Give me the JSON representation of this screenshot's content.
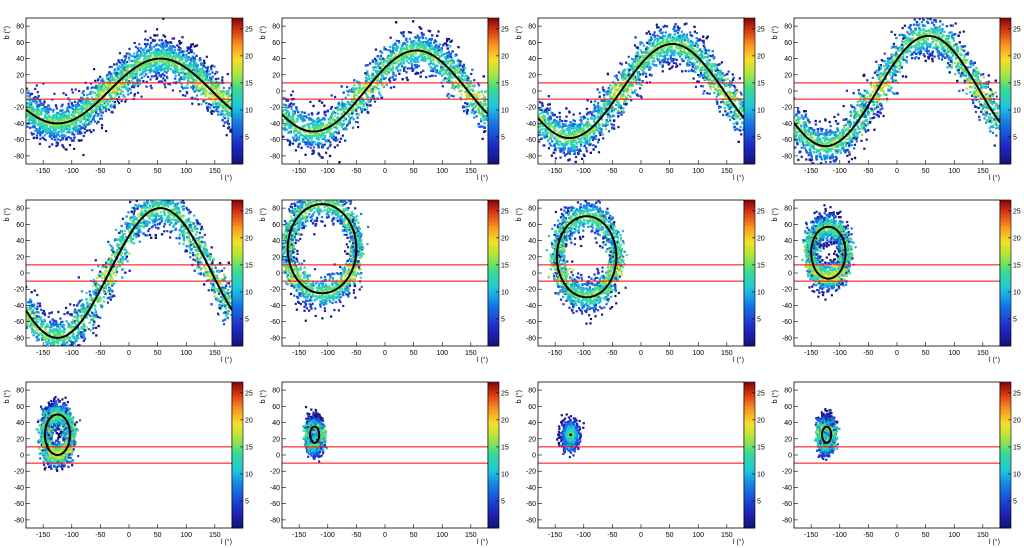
{
  "figure": {
    "common": {
      "xlabel": "l (°)",
      "ylabel": "b (°)",
      "xlim": [
        -180,
        180
      ],
      "ylim": [
        -90,
        90
      ],
      "xticks": [
        -150,
        -100,
        -50,
        0,
        50,
        100,
        150
      ],
      "yticks": [
        -80,
        -60,
        -40,
        -20,
        0,
        20,
        40,
        60,
        80
      ],
      "cbar_ticks": [
        5,
        10,
        15,
        20,
        25
      ],
      "cbar_max": 27,
      "red_lines_b": [
        10,
        -10
      ],
      "colors": {
        "curve": "#000000",
        "red_line": "#ff0000",
        "frame": "#000000"
      }
    }
  },
  "chart_data": [
    {
      "type": "heatmap",
      "kind": "sinusoid",
      "amp": 40,
      "phase": 55,
      "width": 13,
      "peak": 1.0,
      "title": "",
      "xlabel": "l (°)",
      "ylabel": "b (°)",
      "xlim": [
        -180,
        180
      ],
      "ylim": [
        -90,
        90
      ]
    },
    {
      "type": "heatmap",
      "kind": "sinusoid",
      "amp": 50,
      "phase": 55,
      "width": 13,
      "peak": 1.0,
      "title": "",
      "xlabel": "l (°)",
      "ylabel": "b (°)",
      "xlim": [
        -180,
        180
      ],
      "ylim": [
        -90,
        90
      ]
    },
    {
      "type": "heatmap",
      "kind": "sinusoid",
      "amp": 58,
      "phase": 55,
      "width": 13,
      "peak": 1.0,
      "title": "",
      "xlabel": "l (°)",
      "ylabel": "b (°)",
      "xlim": [
        -180,
        180
      ],
      "ylim": [
        -90,
        90
      ]
    },
    {
      "type": "heatmap",
      "kind": "sinusoid",
      "amp": 68,
      "phase": 55,
      "width": 13,
      "peak": 1.0,
      "title": "",
      "xlabel": "l (°)",
      "ylabel": "b (°)",
      "xlim": [
        -180,
        180
      ],
      "ylim": [
        -90,
        90
      ]
    },
    {
      "type": "heatmap",
      "kind": "sinusoid",
      "amp": 80,
      "phase": 55,
      "width": 13,
      "peak": 1.0,
      "title": "",
      "xlabel": "l (°)",
      "ylabel": "b (°)",
      "xlim": [
        -180,
        180
      ],
      "ylim": [
        -90,
        90
      ]
    },
    {
      "type": "heatmap",
      "kind": "loop",
      "cx": -110,
      "cy": 30,
      "rx": 60,
      "ry": 55,
      "width": 11,
      "peak": 1.0,
      "title": "",
      "xlabel": "l (°)",
      "ylabel": "b (°)",
      "xlim": [
        -180,
        180
      ],
      "ylim": [
        -90,
        90
      ]
    },
    {
      "type": "heatmap",
      "kind": "loop",
      "cx": -95,
      "cy": 20,
      "rx": 52,
      "ry": 50,
      "width": 11,
      "peak": 1.0,
      "title": "",
      "xlabel": "l (°)",
      "ylabel": "b (°)",
      "xlim": [
        -180,
        180
      ],
      "ylim": [
        -90,
        90
      ]
    },
    {
      "type": "heatmap",
      "kind": "loop",
      "cx": -120,
      "cy": 25,
      "rx": 30,
      "ry": 32,
      "width": 10,
      "peak": 1.0,
      "title": "",
      "xlabel": "l (°)",
      "ylabel": "b (°)",
      "xlim": [
        -180,
        180
      ],
      "ylim": [
        -90,
        90
      ]
    },
    {
      "type": "heatmap",
      "kind": "loop",
      "cx": -125,
      "cy": 25,
      "rx": 22,
      "ry": 25,
      "width": 9,
      "peak": 1.0,
      "title": "",
      "xlabel": "l (°)",
      "ylabel": "b (°)",
      "xlim": [
        -180,
        180
      ],
      "ylim": [
        -90,
        90
      ]
    },
    {
      "type": "heatmap",
      "kind": "loop",
      "cx": -123,
      "cy": 25,
      "rx": 8,
      "ry": 10,
      "width": 8,
      "peak": 1.0,
      "title": "",
      "xlabel": "l (°)",
      "ylabel": "b (°)",
      "xlim": [
        -180,
        180
      ],
      "ylim": [
        -90,
        90
      ]
    },
    {
      "type": "heatmap",
      "kind": "point",
      "cx": -123,
      "cy": 25,
      "rx": 0,
      "ry": 0,
      "width": 9,
      "peak": 1.0,
      "title": "",
      "xlabel": "l (°)",
      "ylabel": "b (°)",
      "xlim": [
        -180,
        180
      ],
      "ylim": [
        -90,
        90
      ]
    },
    {
      "type": "heatmap",
      "kind": "loop",
      "cx": -123,
      "cy": 25,
      "rx": 8,
      "ry": 10,
      "width": 8,
      "peak": 1.0,
      "title": "",
      "xlabel": "l (°)",
      "ylabel": "b (°)",
      "xlim": [
        -180,
        180
      ],
      "ylim": [
        -90,
        90
      ]
    }
  ]
}
